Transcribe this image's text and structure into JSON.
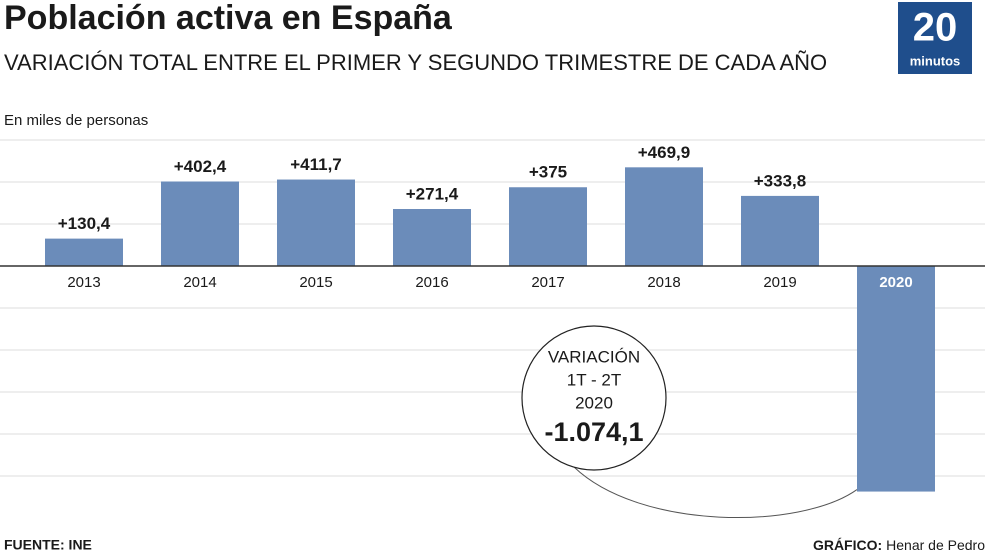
{
  "chart_data": {
    "type": "bar",
    "title": "Población activa en España",
    "subtitle": "VARIACIÓN TOTAL ENTRE EL PRIMER Y SEGUNDO TRIMESTRE DE CADA AÑO",
    "y_label": "En miles de personas",
    "categories": [
      "2013",
      "2014",
      "2015",
      "2016",
      "2017",
      "2018",
      "2019",
      "2020"
    ],
    "values": [
      130.4,
      402.4,
      411.7,
      271.4,
      375,
      469.9,
      333.8,
      -1074.1
    ],
    "value_labels": [
      "+130,4",
      "+402,4",
      "+411,7",
      "+271,4",
      "+375",
      "+469,9",
      "+333,8",
      "-1.074,1"
    ],
    "color": "#6b8cba",
    "ylim": [
      -1100,
      600
    ],
    "yticks": [
      600,
      400,
      200,
      0,
      -200,
      -400,
      -600,
      -800,
      -1000
    ],
    "grid": true,
    "annotation": {
      "lines": [
        "VARIACIÓN",
        "1T - 2T",
        "2020"
      ]
    },
    "logo": {
      "number": "20",
      "word": "minutos"
    },
    "source": "FUENTE: INE",
    "credit": {
      "label": "GRÁFICO:",
      "name": "Henar de Pedro"
    }
  }
}
